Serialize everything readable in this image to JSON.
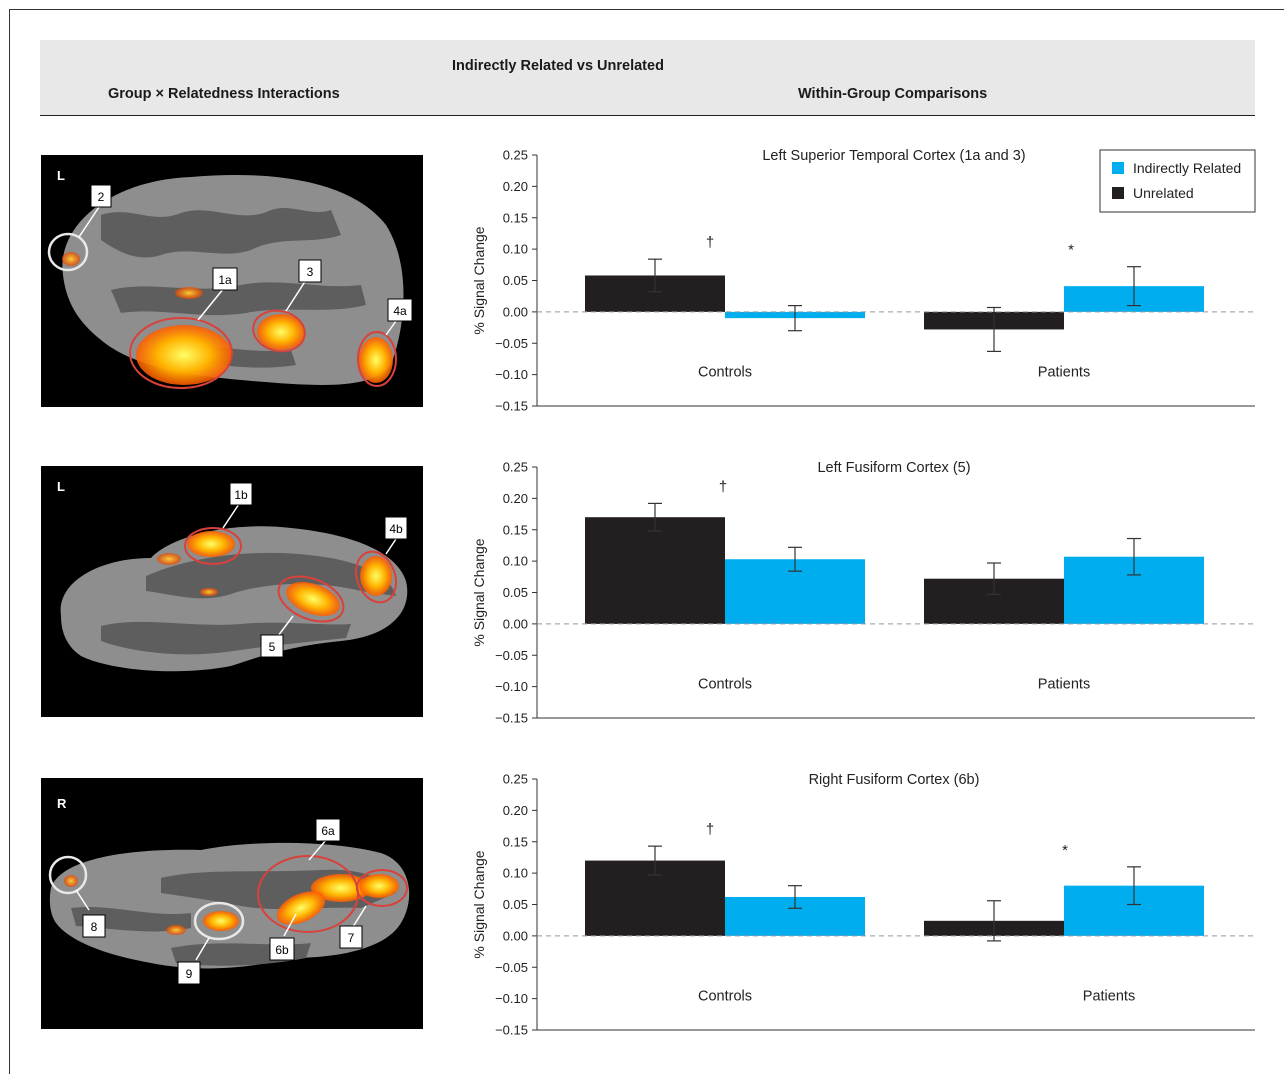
{
  "header": {
    "top_title": "Indirectly Related vs Unrelated",
    "left_title": "Group × Relatedness Interactions",
    "right_title": "Within-Group Comparisons"
  },
  "colors": {
    "indirectly_related": "#00aeef",
    "unrelated": "#231f20",
    "brain_background": "#000000",
    "red_circle": "#d9413b",
    "white_circle": "#e8e8e8"
  },
  "legend": {
    "items": [
      {
        "label": "Indirectly Related",
        "color": "#00aeef"
      },
      {
        "label": "Unrelated",
        "color": "#231f20"
      }
    ]
  },
  "brains": [
    {
      "hemisphere": "L",
      "labels": [
        "2",
        "1a",
        "3",
        "4a"
      ]
    },
    {
      "hemisphere": "L",
      "labels": [
        "1b",
        "4b",
        "5"
      ]
    },
    {
      "hemisphere": "R",
      "labels": [
        "6a",
        "8",
        "7",
        "9",
        "6b"
      ]
    }
  ],
  "chart_data": [
    {
      "type": "bar",
      "title": "Left Superior Temporal Cortex (1a and 3)",
      "ylabel": "% Signal Change",
      "ylim": [
        -0.15,
        0.25
      ],
      "yticks": [
        "0.25",
        "0.20",
        "0.15",
        "0.10",
        "0.05",
        "0.00",
        "−0.05",
        "−0.10",
        "−0.15"
      ],
      "categories": [
        "Controls",
        "Patients"
      ],
      "series": [
        {
          "name": "Unrelated",
          "values": [
            0.058,
            -0.028
          ],
          "errors": [
            0.026,
            0.035
          ]
        },
        {
          "name": "Indirectly Related",
          "values": [
            -0.01,
            0.041
          ],
          "errors": [
            0.02,
            0.031
          ]
        }
      ],
      "significance": [
        "†",
        "*"
      ],
      "show_legend": true,
      "legend_position": "top-right"
    },
    {
      "type": "bar",
      "title": "Left Fusiform Cortex (5)",
      "ylabel": "% Signal Change",
      "ylim": [
        -0.15,
        0.25
      ],
      "yticks": [
        "0.25",
        "0.20",
        "0.15",
        "0.10",
        "0.05",
        "0.00",
        "−0.05",
        "−0.10",
        "−0.15"
      ],
      "categories": [
        "Controls",
        "Patients"
      ],
      "series": [
        {
          "name": "Unrelated",
          "values": [
            0.17,
            0.072
          ],
          "errors": [
            0.022,
            0.025
          ]
        },
        {
          "name": "Indirectly Related",
          "values": [
            0.103,
            0.107
          ],
          "errors": [
            0.019,
            0.029
          ]
        }
      ],
      "significance": [
        "†",
        ""
      ],
      "show_legend": false
    },
    {
      "type": "bar",
      "title": "Right Fusiform Cortex (6b)",
      "ylabel": "% Signal Change",
      "ylim": [
        -0.15,
        0.25
      ],
      "yticks": [
        "0.25",
        "0.20",
        "0.15",
        "0.10",
        "0.05",
        "0.00",
        "−0.05",
        "−0.10",
        "−0.15"
      ],
      "categories": [
        "Controls",
        "Patients"
      ],
      "series": [
        {
          "name": "Unrelated",
          "values": [
            0.12,
            0.024
          ],
          "errors": [
            0.023,
            0.032
          ]
        },
        {
          "name": "Indirectly Related",
          "values": [
            0.062,
            0.08
          ],
          "errors": [
            0.018,
            0.03
          ]
        }
      ],
      "significance": [
        "†",
        "*"
      ],
      "show_legend": false
    }
  ]
}
